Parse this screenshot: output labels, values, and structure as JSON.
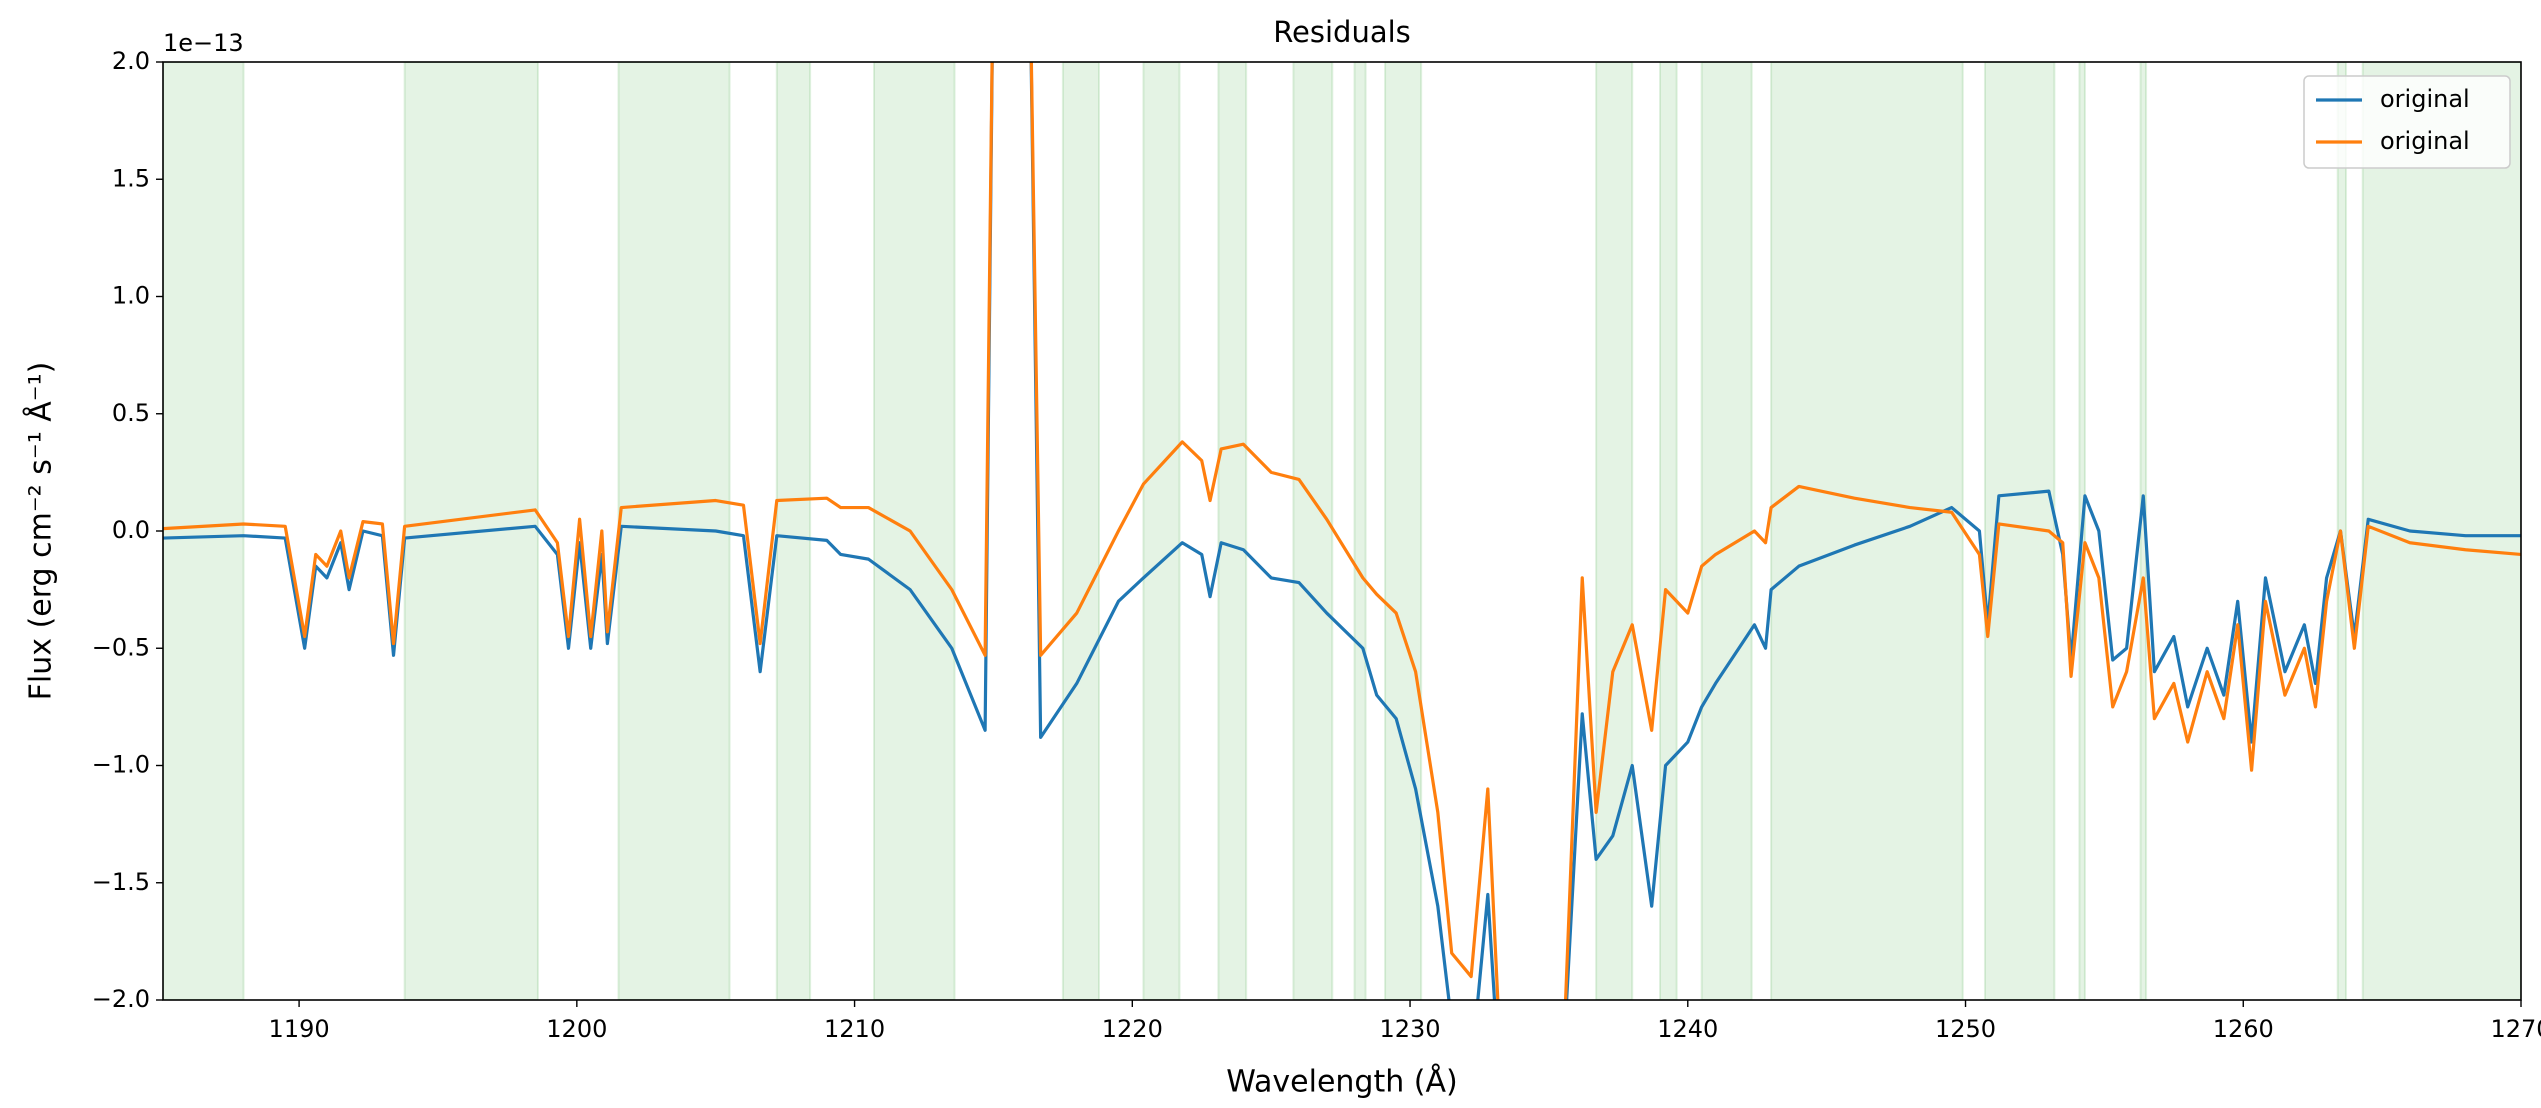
{
  "chart_data": {
    "type": "line",
    "title": "Residuals",
    "x_label": "Wavelength (Å)",
    "y_label": "Flux (erg cm⁻² s⁻¹ Å⁻¹)",
    "y_offset_label": "1e−13",
    "xlim": [
      1185.1,
      1270
    ],
    "ylim": [
      -2,
      2
    ],
    "xticks": [
      1190,
      1200,
      1210,
      1220,
      1230,
      1240,
      1250,
      1260,
      1270
    ],
    "yticks": [
      {
        "value": -2,
        "label": "−2.0"
      },
      {
        "value": -1.5,
        "label": "−1.5"
      },
      {
        "value": -1,
        "label": "−1.0"
      },
      {
        "value": -0.5,
        "label": "−0.5"
      },
      {
        "value": 0,
        "label": "0.0"
      },
      {
        "value": 0.5,
        "label": "0.5"
      },
      {
        "value": 1,
        "label": "1.0"
      },
      {
        "value": 1.5,
        "label": "1.5"
      },
      {
        "value": 2,
        "label": "2.0"
      }
    ],
    "legend": "upper right",
    "span_color": "#2ca02c",
    "spans": [
      [
        1185.1,
        1188.0
      ],
      [
        1193.8,
        1198.6
      ],
      [
        1201.5,
        1205.5
      ],
      [
        1207.2,
        1208.4
      ],
      [
        1210.7,
        1213.6
      ],
      [
        1217.5,
        1218.8
      ],
      [
        1220.4,
        1221.7
      ],
      [
        1223.1,
        1224.1
      ],
      [
        1225.8,
        1227.2
      ],
      [
        1228.0,
        1228.4
      ],
      [
        1229.1,
        1230.4
      ],
      [
        1236.7,
        1238.0
      ],
      [
        1239.0,
        1239.6
      ],
      [
        1240.5,
        1242.3
      ],
      [
        1243.0,
        1249.9
      ],
      [
        1250.7,
        1253.2
      ],
      [
        1254.1,
        1254.3
      ],
      [
        1256.3,
        1256.5
      ],
      [
        1263.4,
        1263.7
      ],
      [
        1264.3,
        1270
      ]
    ],
    "x": [
      1185.1,
      1188,
      1189.5,
      1190.2,
      1190.6,
      1191,
      1191.5,
      1191.8,
      1192.3,
      1193,
      1193.4,
      1193.8,
      1198.5,
      1199.3,
      1199.7,
      1200.1,
      1200.5,
      1200.9,
      1201.1,
      1201.6,
      1205,
      1206,
      1206.6,
      1207.2,
      1209,
      1209.5,
      1210.5,
      1212,
      1213.5,
      1214.7,
      1215.0,
      1216.3,
      1216.7,
      1218,
      1219.5,
      1220.4,
      1221.8,
      1222.5,
      1222.8,
      1223.2,
      1224,
      1225,
      1226,
      1227,
      1228.3,
      1228.8,
      1229.5,
      1230.2,
      1231,
      1231.5,
      1232.2,
      1232.8,
      1233.2,
      1235.5,
      1236.2,
      1236.7,
      1237.3,
      1238,
      1238.7,
      1239.2,
      1240,
      1240.5,
      1241,
      1242.4,
      1242.8,
      1243,
      1244,
      1246,
      1248,
      1249.5,
      1250.5,
      1250.8,
      1251.2,
      1253,
      1253.5,
      1253.8,
      1254.3,
      1254.8,
      1255.3,
      1255.8,
      1256.4,
      1256.8,
      1257.5,
      1258,
      1258.7,
      1259.3,
      1259.8,
      1260.3,
      1260.8,
      1261.5,
      1262.2,
      1262.6,
      1263,
      1263.5,
      1264,
      1264.5,
      1266,
      1268,
      1270
    ],
    "series": [
      {
        "name": "original",
        "color": "#1f77b4",
        "values": [
          -0.03,
          -0.02,
          -0.03,
          -0.5,
          -0.15,
          -0.2,
          -0.05,
          -0.25,
          0.0,
          -0.02,
          -0.53,
          -0.03,
          0.02,
          -0.1,
          -0.5,
          -0.05,
          -0.5,
          -0.1,
          -0.48,
          0.02,
          0.0,
          -0.02,
          -0.6,
          -0.02,
          -0.04,
          -0.1,
          -0.12,
          -0.25,
          -0.5,
          -0.85,
          2.5,
          2.5,
          -0.88,
          -0.65,
          -0.3,
          -0.2,
          -0.05,
          -0.1,
          -0.28,
          -0.05,
          -0.08,
          -0.2,
          -0.22,
          -0.35,
          -0.5,
          -0.7,
          -0.8,
          -1.1,
          -1.6,
          -2.1,
          -2.3,
          -1.55,
          -2.3,
          -2.3,
          -0.78,
          -1.4,
          -1.3,
          -1.0,
          -1.6,
          -1.0,
          -0.9,
          -0.75,
          -0.65,
          -0.4,
          -0.5,
          -0.25,
          -0.15,
          -0.06,
          0.02,
          0.1,
          0.0,
          -0.4,
          0.15,
          0.17,
          -0.1,
          -0.55,
          0.15,
          0.0,
          -0.55,
          -0.5,
          0.15,
          -0.6,
          -0.45,
          -0.75,
          -0.5,
          -0.7,
          -0.3,
          -0.9,
          -0.2,
          -0.6,
          -0.4,
          -0.65,
          -0.2,
          0.0,
          -0.45,
          0.05,
          0.0,
          -0.02,
          -0.02
        ]
      },
      {
        "name": "original",
        "color": "#ff7f0e",
        "values": [
          0.01,
          0.03,
          0.02,
          -0.45,
          -0.1,
          -0.15,
          0.0,
          -0.2,
          0.04,
          0.03,
          -0.48,
          0.02,
          0.09,
          -0.05,
          -0.45,
          0.05,
          -0.45,
          0.0,
          -0.43,
          0.1,
          0.13,
          0.11,
          -0.48,
          0.13,
          0.14,
          0.1,
          0.1,
          0.0,
          -0.25,
          -0.53,
          2.5,
          2.5,
          -0.53,
          -0.35,
          0.0,
          0.2,
          0.38,
          0.3,
          0.13,
          0.35,
          0.37,
          0.25,
          0.22,
          0.05,
          -0.2,
          -0.27,
          -0.35,
          -0.6,
          -1.2,
          -1.8,
          -1.9,
          -1.1,
          -2.1,
          -2.3,
          -0.2,
          -1.2,
          -0.6,
          -0.4,
          -0.85,
          -0.25,
          -0.35,
          -0.15,
          -0.1,
          0.0,
          -0.05,
          0.1,
          0.19,
          0.14,
          0.1,
          0.08,
          -0.1,
          -0.45,
          0.03,
          0.0,
          -0.05,
          -0.62,
          -0.05,
          -0.2,
          -0.75,
          -0.6,
          -0.2,
          -0.8,
          -0.65,
          -0.9,
          -0.6,
          -0.8,
          -0.4,
          -1.02,
          -0.3,
          -0.7,
          -0.5,
          -0.75,
          -0.3,
          0.0,
          -0.5,
          0.02,
          -0.05,
          -0.08,
          -0.1
        ]
      }
    ]
  }
}
